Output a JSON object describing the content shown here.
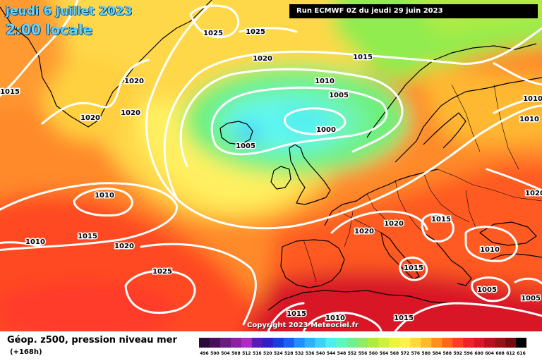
{
  "header": {
    "date": "jeudi 6 juillet 2023",
    "time": "2:00 locale",
    "run": "Run ECMWF 0Z du jeudi 29 juin 2023"
  },
  "copyright": "Copyright 2023 Meteociel.fr",
  "footer": {
    "title": "Géop. z500, pression niveau mer",
    "subtitle": "(+168h)"
  },
  "scale": {
    "values": [
      "496",
      "500",
      "504",
      "508",
      "512",
      "516",
      "520",
      "524",
      "528",
      "532",
      "536",
      "540",
      "544",
      "548",
      "552",
      "556",
      "560",
      "564",
      "568",
      "572",
      "576",
      "580",
      "584",
      "588",
      "592",
      "596",
      "600",
      "604",
      "608",
      "612",
      "616"
    ],
    "colors": [
      "#2a0a3a",
      "#48105a",
      "#6a1a80",
      "#8e20a8",
      "#b02ac8",
      "#5a1ab4",
      "#3020c0",
      "#1840d8",
      "#1860f0",
      "#2090ff",
      "#30b0ff",
      "#40d0ff",
      "#50ecf0",
      "#60f4c0",
      "#70f090",
      "#90ec60",
      "#b0ec40",
      "#d0f040",
      "#ecf440",
      "#fff050",
      "#ffd840",
      "#ffb830",
      "#ff9020",
      "#ff6818",
      "#ff4020",
      "#f02428",
      "#d81828",
      "#b81020",
      "#981018",
      "#780810",
      "#000000"
    ]
  },
  "colors": {
    "ocean_far": "#ff5a20",
    "ocean_orange": "#ff8a2a",
    "ocean_yellow": "#ffd848",
    "low_green": "#6ef07a",
    "low_cyan": "#60f8f0",
    "hot_red": "#e8242a",
    "isobar": "#ffffff",
    "coast": "#000000"
  },
  "isobars": [
    {
      "label": "1025"
    },
    {
      "label": "1025"
    },
    {
      "label": "1020"
    },
    {
      "label": "1015"
    },
    {
      "label": "1015"
    },
    {
      "label": "1020"
    },
    {
      "label": "1020"
    },
    {
      "label": "1020"
    },
    {
      "label": "1010"
    },
    {
      "label": "1005"
    },
    {
      "label": "1000"
    },
    {
      "label": "1005"
    },
    {
      "label": "1010"
    },
    {
      "label": "1010"
    },
    {
      "label": "1015"
    },
    {
      "label": "1020"
    },
    {
      "label": "1025"
    },
    {
      "label": "1020"
    },
    {
      "label": "1020"
    },
    {
      "label": "1015"
    },
    {
      "label": "1015"
    },
    {
      "label": "1010"
    },
    {
      "label": "1010"
    },
    {
      "label": "1015"
    },
    {
      "label": "1010"
    },
    {
      "label": "1005"
    },
    {
      "label": "1005"
    },
    {
      "label": "1010"
    },
    {
      "label": "1020"
    },
    {
      "label": "1015"
    }
  ]
}
